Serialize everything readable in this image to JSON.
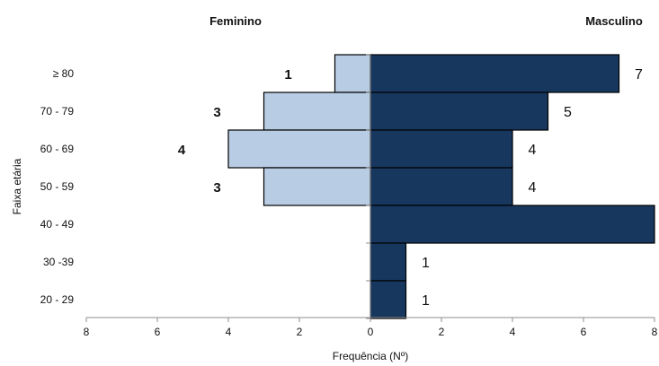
{
  "chart_data": {
    "type": "bar",
    "orientation": "horizontal-pyramid",
    "categories": [
      "≥ 80",
      "70 - 79",
      "60 - 69",
      "50 - 59",
      "40 - 49",
      "30 -39",
      "20 - 29"
    ],
    "series": [
      {
        "name": "Feminino",
        "side": "left",
        "color": "#b8cce4",
        "values": [
          1,
          3,
          4,
          3,
          0,
          0,
          0
        ]
      },
      {
        "name": "Masculino",
        "side": "right",
        "color": "#17375e",
        "values": [
          7,
          5,
          4,
          4,
          8,
          1,
          1
        ]
      }
    ],
    "data_labels": {
      "Feminino": [
        "1",
        "3",
        "4",
        "3",
        "",
        "",
        ""
      ],
      "Masculino": [
        "7",
        "5",
        "4",
        "4",
        "",
        "1",
        "1"
      ]
    },
    "xlabel": "Frequência (Nº)",
    "ylabel": "Faixa etária",
    "xlim": [
      -8,
      8
    ],
    "xticks": [
      -8,
      -6,
      -4,
      -2,
      0,
      2,
      4,
      6,
      8
    ],
    "xtick_labels": [
      "8",
      "6",
      "4",
      "2",
      "0",
      "2",
      "4",
      "6",
      "8"
    ],
    "grid": false,
    "legend": "side titles above each half"
  }
}
